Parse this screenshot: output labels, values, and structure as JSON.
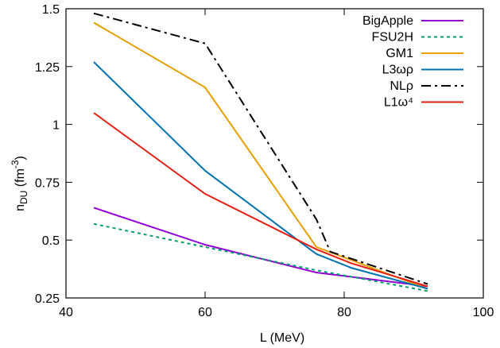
{
  "chart_data": {
    "type": "line",
    "xlabel": "L  (MeV)",
    "ylabel": {
      "base": "n",
      "sub": "DU",
      "unit_open": "  (fm",
      "sup": "-3",
      "unit_close": ")"
    },
    "xlim": [
      40,
      100
    ],
    "ylim": [
      0.25,
      1.5
    ],
    "x_ticks": [
      40,
      60,
      80,
      100
    ],
    "y_ticks": [
      0.25,
      0.5,
      0.75,
      1,
      1.25,
      1.5
    ],
    "x_tick_labels": [
      "40",
      "60",
      "80",
      "100"
    ],
    "y_tick_labels": [
      "0.25",
      "0.5",
      "0.75",
      "1",
      "1.25",
      "1.5"
    ],
    "legend_position": "top-right",
    "grid": false,
    "series": [
      {
        "name": "BigApple",
        "color": "#9400d3",
        "dash": "solid",
        "x": [
          44,
          60,
          76,
          92
        ],
        "y": [
          0.64,
          0.48,
          0.36,
          0.3
        ]
      },
      {
        "name": "FSU2H",
        "color": "#009e73",
        "dash": "dotted",
        "x": [
          44,
          60,
          76,
          92
        ],
        "y": [
          0.57,
          0.47,
          0.37,
          0.28
        ]
      },
      {
        "name": "GM1",
        "color": "#e69f00",
        "dash": "solid",
        "x": [
          44,
          60,
          76,
          92
        ],
        "y": [
          1.44,
          1.16,
          0.47,
          0.29
        ]
      },
      {
        "name": "L3ωρ",
        "color": "#0072b2",
        "dash": "solid",
        "x": [
          44,
          60,
          76,
          81,
          92
        ],
        "y": [
          1.27,
          0.8,
          0.44,
          0.38,
          0.29
        ]
      },
      {
        "name": "NLρ",
        "color": "#000000",
        "dash": "dashdot",
        "x": [
          44,
          60,
          76,
          78,
          92
        ],
        "y": [
          1.48,
          1.35,
          0.59,
          0.45,
          0.31
        ]
      },
      {
        "name": "L1ω⁴",
        "color": "#e51e10",
        "dash": "solid",
        "x": [
          44,
          60,
          76,
          81,
          92
        ],
        "y": [
          1.05,
          0.7,
          0.46,
          0.4,
          0.3
        ]
      }
    ]
  }
}
